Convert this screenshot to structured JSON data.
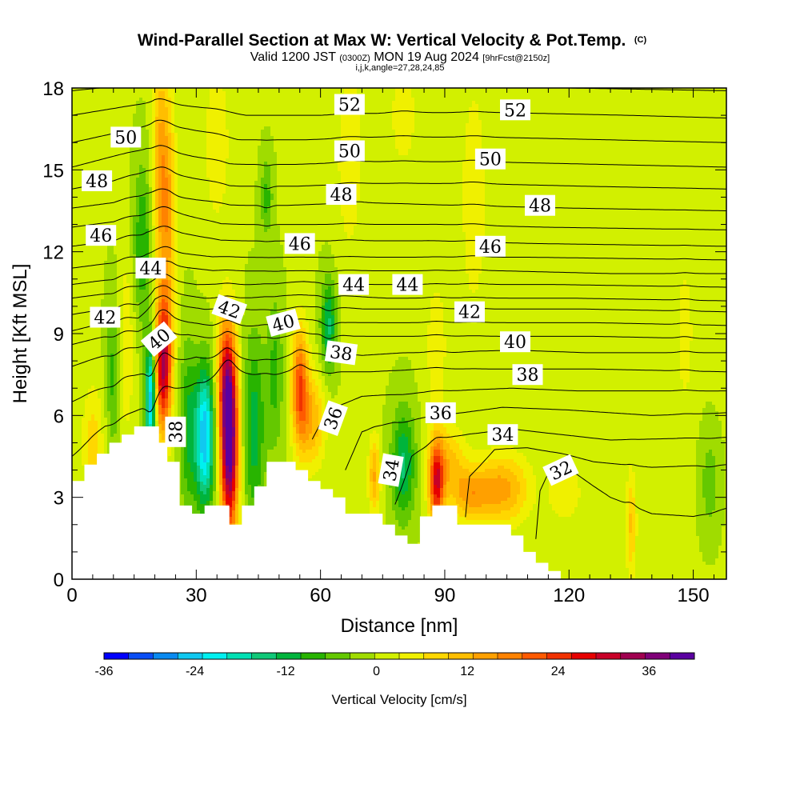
{
  "chart_data": {
    "type": "heatmap",
    "title": "Wind-Parallel Section at Max W: Vertical Velocity & Pot.Temp.",
    "title_mark": "(C)",
    "subtitle": {
      "prefix": "Valid 1200 JST ",
      "utc": "(0300Z)",
      "main": " MON 19 Aug 2024 ",
      "forecast": "[9hrFcst@2150z]"
    },
    "valid_line": "i,j,k,angle=27,28,24,85",
    "xlabel": "Distance [nm]",
    "ylabel": "Height [Kft MSL]",
    "xlim": [
      0,
      158
    ],
    "ylim": [
      0,
      18
    ],
    "x_ticks": [
      0,
      30,
      60,
      90,
      120,
      150
    ],
    "y_ticks": [
      0,
      3,
      6,
      9,
      12,
      15,
      18
    ],
    "background_color": "#8fd400",
    "colorbar": {
      "title": "Vertical Velocity [cm/s]",
      "range": [
        -36,
        42
      ],
      "tick_values": [
        -36,
        -24,
        -12,
        0,
        12,
        24,
        36
      ],
      "colors": [
        "#0000ff",
        "#0a4ef5",
        "#0a8af0",
        "#10c8f0",
        "#00f0f0",
        "#00e0b4",
        "#10c878",
        "#00b43c",
        "#28b400",
        "#64c800",
        "#a0dc00",
        "#d2f000",
        "#f0f000",
        "#ffd700",
        "#ffbe00",
        "#ffa000",
        "#ff8200",
        "#ff5a00",
        "#f03200",
        "#e60000",
        "#c80028",
        "#a00050",
        "#800078",
        "#5a00a0"
      ]
    },
    "terrain_profile": [
      [
        0,
        3.6
      ],
      [
        1,
        3.6
      ],
      [
        3,
        3.6
      ],
      [
        3,
        4.2
      ],
      [
        6,
        4.2
      ],
      [
        6,
        4.6
      ],
      [
        9,
        4.6
      ],
      [
        9,
        5.0
      ],
      [
        12,
        5.0
      ],
      [
        12,
        5.3
      ],
      [
        15,
        5.3
      ],
      [
        15,
        5.6
      ],
      [
        21,
        5.6
      ],
      [
        21,
        5.0
      ],
      [
        23,
        5.0
      ],
      [
        23,
        4.3
      ],
      [
        26,
        4.3
      ],
      [
        26,
        2.7
      ],
      [
        29,
        2.7
      ],
      [
        29,
        2.4
      ],
      [
        32,
        2.4
      ],
      [
        32,
        2.7
      ],
      [
        38,
        2.7
      ],
      [
        38,
        2.0
      ],
      [
        41,
        2.0
      ],
      [
        41,
        2.7
      ],
      [
        44,
        2.7
      ],
      [
        44,
        3.4
      ],
      [
        47,
        3.4
      ],
      [
        47,
        4.3
      ],
      [
        54,
        4.3
      ],
      [
        54,
        4.0
      ],
      [
        57,
        4.0
      ],
      [
        57,
        3.6
      ],
      [
        60,
        3.6
      ],
      [
        60,
        3.3
      ],
      [
        63,
        3.3
      ],
      [
        63,
        3.0
      ],
      [
        66,
        3.0
      ],
      [
        66,
        2.4
      ],
      [
        75,
        2.4
      ],
      [
        75,
        2.0
      ],
      [
        78,
        2.0
      ],
      [
        78,
        1.6
      ],
      [
        81,
        1.6
      ],
      [
        81,
        1.3
      ],
      [
        84,
        1.3
      ],
      [
        84,
        2.3
      ],
      [
        87,
        2.3
      ],
      [
        87,
        2.7
      ],
      [
        93,
        2.7
      ],
      [
        93,
        2.0
      ],
      [
        106,
        2.0
      ],
      [
        106,
        1.6
      ],
      [
        109,
        1.6
      ],
      [
        109,
        1.0
      ],
      [
        112,
        1.0
      ],
      [
        112,
        0.6
      ],
      [
        115,
        0.6
      ],
      [
        115,
        0.3
      ],
      [
        118,
        0.3
      ],
      [
        118,
        0.0
      ],
      [
        158,
        0.0
      ]
    ],
    "updraft_blobs": [
      {
        "x": 22,
        "y": 7.8,
        "sx": 1.4,
        "sy": 1.7,
        "w": 32
      },
      {
        "x": 23,
        "y": 13.5,
        "sx": 1.4,
        "sy": 3.2,
        "w": 14
      },
      {
        "x": 21,
        "y": 15.5,
        "sx": 1.2,
        "sy": 3.0,
        "w": 10
      },
      {
        "x": 38,
        "y": 5.0,
        "sx": 1.5,
        "sy": 2.4,
        "w": 42
      },
      {
        "x": 37,
        "y": 7.4,
        "sx": 1.5,
        "sy": 1.6,
        "w": 16
      },
      {
        "x": 55,
        "y": 7.1,
        "sx": 1.4,
        "sy": 1.5,
        "w": 21
      },
      {
        "x": 58,
        "y": 5.8,
        "sx": 2.2,
        "sy": 1.2,
        "w": 12
      },
      {
        "x": 73,
        "y": 3.8,
        "sx": 1.0,
        "sy": 1.0,
        "w": 13
      },
      {
        "x": 88,
        "y": 3.5,
        "sx": 1.3,
        "sy": 1.1,
        "w": 26
      },
      {
        "x": 91,
        "y": 4.3,
        "sx": 2.8,
        "sy": 0.9,
        "w": 10
      },
      {
        "x": 104,
        "y": 3.3,
        "sx": 4.5,
        "sy": 0.9,
        "w": 14
      },
      {
        "x": 96,
        "y": 3.1,
        "sx": 3.2,
        "sy": 0.7,
        "w": 12
      },
      {
        "x": 135,
        "y": 2.0,
        "sx": 0.9,
        "sy": 1.4,
        "w": 10
      },
      {
        "x": 119,
        "y": 3.2,
        "sx": 3.0,
        "sy": 0.8,
        "w": 6
      },
      {
        "x": 5,
        "y": 5.0,
        "sx": 1.8,
        "sy": 1.5,
        "w": 8
      },
      {
        "x": 13,
        "y": 8.5,
        "sx": 1.4,
        "sy": 2.5,
        "w": 6
      },
      {
        "x": 35,
        "y": 16.0,
        "sx": 2.5,
        "sy": 2.5,
        "w": 5
      },
      {
        "x": 67,
        "y": 15.5,
        "sx": 2.5,
        "sy": 3.0,
        "w": 5
      },
      {
        "x": 88,
        "y": 8.5,
        "sx": 2.0,
        "sy": 2.0,
        "w": 5
      },
      {
        "x": 97,
        "y": 14.0,
        "sx": 2.5,
        "sy": 3.5,
        "w": 5
      },
      {
        "x": 148,
        "y": 9.0,
        "sx": 1.5,
        "sy": 2.0,
        "w": 5
      },
      {
        "x": 80,
        "y": 17.0,
        "sx": 2.5,
        "sy": 1.5,
        "w": 5
      }
    ],
    "downdraft_blobs": [
      {
        "x": 19,
        "y": 6.6,
        "sx": 0.9,
        "sy": 1.5,
        "w": -26
      },
      {
        "x": 32,
        "y": 5.2,
        "sx": 1.7,
        "sy": 1.8,
        "w": -26
      },
      {
        "x": 28,
        "y": 5.6,
        "sx": 1.4,
        "sy": 2.2,
        "w": -10
      },
      {
        "x": 44,
        "y": 5.5,
        "sx": 1.8,
        "sy": 2.4,
        "w": -12
      },
      {
        "x": 49,
        "y": 7.5,
        "sx": 1.4,
        "sy": 2.0,
        "w": -8
      },
      {
        "x": 62,
        "y": 9.3,
        "sx": 1.3,
        "sy": 1.2,
        "w": -14
      },
      {
        "x": 80,
        "y": 4.2,
        "sx": 2.0,
        "sy": 1.4,
        "w": -14
      },
      {
        "x": 17,
        "y": 12.3,
        "sx": 1.5,
        "sy": 2.0,
        "w": -10
      },
      {
        "x": 10,
        "y": 7.5,
        "sx": 1.2,
        "sy": 2.0,
        "w": -8
      },
      {
        "x": 47,
        "y": 14.0,
        "sx": 1.0,
        "sy": 1.0,
        "w": -8
      },
      {
        "x": 154,
        "y": 3.5,
        "sx": 1.5,
        "sy": 1.2,
        "w": -6
      }
    ],
    "theta_contours": {
      "levels": [
        32,
        33,
        34,
        35,
        36,
        37,
        38,
        39,
        40,
        41,
        42,
        43,
        44,
        45,
        46,
        47,
        48,
        49,
        50,
        51,
        52,
        53
      ],
      "labels": [
        {
          "text": "52",
          "x": 67,
          "y": 17.4,
          "angle": 0
        },
        {
          "text": "52",
          "x": 107,
          "y": 17.2,
          "angle": 0
        },
        {
          "text": "50",
          "x": 13,
          "y": 16.2,
          "angle": 0
        },
        {
          "text": "50",
          "x": 67,
          "y": 15.7,
          "angle": 0
        },
        {
          "text": "50",
          "x": 101,
          "y": 15.4,
          "angle": 0
        },
        {
          "text": "48",
          "x": 6,
          "y": 14.6,
          "angle": 0
        },
        {
          "text": "48",
          "x": 65,
          "y": 14.1,
          "angle": 0
        },
        {
          "text": "48",
          "x": 113,
          "y": 13.7,
          "angle": 0
        },
        {
          "text": "46",
          "x": 7,
          "y": 12.6,
          "angle": 0
        },
        {
          "text": "46",
          "x": 55,
          "y": 12.3,
          "angle": 0
        },
        {
          "text": "46",
          "x": 101,
          "y": 12.2,
          "angle": 0
        },
        {
          "text": "44",
          "x": 19,
          "y": 11.4,
          "angle": 0
        },
        {
          "text": "44",
          "x": 68,
          "y": 10.8,
          "angle": 0
        },
        {
          "text": "44",
          "x": 81,
          "y": 10.8,
          "angle": 0
        },
        {
          "text": "42",
          "x": 8,
          "y": 9.6,
          "angle": 0
        },
        {
          "text": "42",
          "x": 38,
          "y": 9.9,
          "angle": 20
        },
        {
          "text": "42",
          "x": 96,
          "y": 9.8,
          "angle": 0
        },
        {
          "text": "40",
          "x": 21,
          "y": 8.8,
          "angle": -40
        },
        {
          "text": "40",
          "x": 51,
          "y": 9.4,
          "angle": -15
        },
        {
          "text": "40",
          "x": 107,
          "y": 8.7,
          "angle": 0
        },
        {
          "text": "38",
          "x": 25,
          "y": 5.4,
          "angle": -90
        },
        {
          "text": "38",
          "x": 65,
          "y": 8.3,
          "angle": 8
        },
        {
          "text": "38",
          "x": 110,
          "y": 7.5,
          "angle": 0
        },
        {
          "text": "36",
          "x": 63,
          "y": 5.9,
          "angle": -70
        },
        {
          "text": "36",
          "x": 89,
          "y": 6.1,
          "angle": 0
        },
        {
          "text": "34",
          "x": 77,
          "y": 4.0,
          "angle": -80
        },
        {
          "text": "34",
          "x": 104,
          "y": 5.3,
          "angle": 0
        },
        {
          "text": "32",
          "x": 118,
          "y": 4.0,
          "angle": -25
        }
      ]
    }
  }
}
